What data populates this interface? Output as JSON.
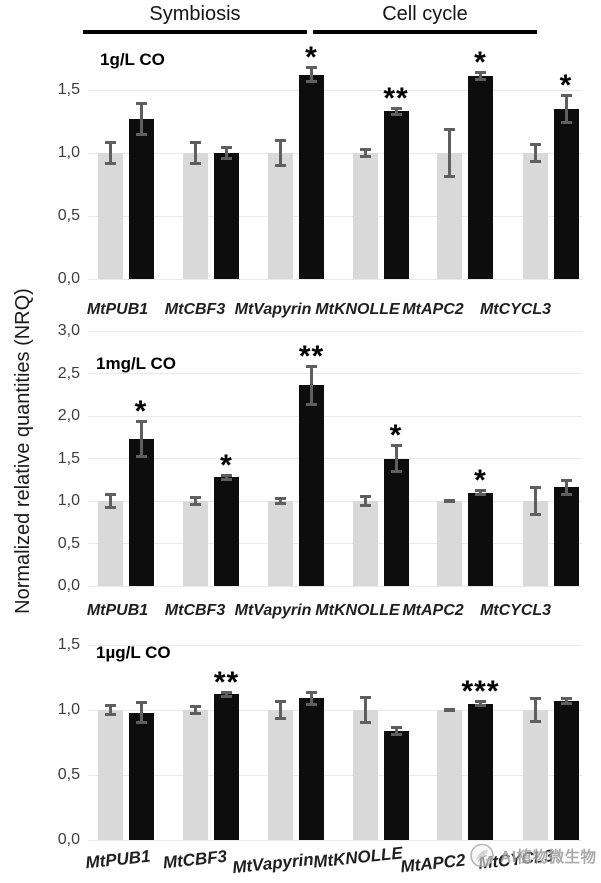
{
  "figure": {
    "y_axis_title": "Normalized relative quantities (NRQ)",
    "group_headers": [
      {
        "label": "Symbiosis"
      },
      {
        "label": "Cell cycle"
      }
    ]
  },
  "colors": {
    "gray_bar": "#d9d9d9",
    "black_bar": "#0d0d0d",
    "error_bar": "#5f5f5f",
    "gridline": "#e9e9e9",
    "tick_text": "#3d3d3d",
    "label_text": "#1f1f1f",
    "watermark_text": "#9c9c9c"
  },
  "watermark": {
    "icon": "plant-microbe-logo",
    "text": "AI植物微生物"
  },
  "chart_data": [
    {
      "type": "bar",
      "title": "1g/L CO",
      "categories": [
        "MtPUB1",
        "MtCBF3",
        "MtVapyrin",
        "MtKNOLLE",
        "MtAPC2",
        "MtCYCL3"
      ],
      "ylim": [
        0,
        1.75
      ],
      "grid": true,
      "legend_position": "none",
      "yticks": [
        {
          "value": 0,
          "label": "0,0"
        },
        {
          "value": 0.5,
          "label": "0,5"
        },
        {
          "value": 1,
          "label": "1,0"
        },
        {
          "value": 1.5,
          "label": "1,5"
        }
      ],
      "series": [
        {
          "name": "gray-bar",
          "values": [
            1,
            1,
            1,
            1,
            1,
            1
          ],
          "errors": [
            0.09,
            0.09,
            0.1,
            0.03,
            0.19,
            0.07
          ]
        },
        {
          "name": "black-bar",
          "values": [
            1.27,
            1.0,
            1.62,
            1.33,
            1.61,
            1.35
          ],
          "errors": [
            0.13,
            0.05,
            0.06,
            0.03,
            0.03,
            0.11
          ]
        }
      ],
      "significance": [
        "",
        "",
        "*",
        "**",
        "*",
        "*"
      ]
    },
    {
      "type": "bar",
      "title": "1mg/L CO",
      "categories": [
        "MtPUB1",
        "MtCBF3",
        "MtVapyrin",
        "MtKNOLLE",
        "MtAPC2",
        "MtCYCL3"
      ],
      "ylim": [
        0,
        3.0
      ],
      "grid": true,
      "legend_position": "none",
      "yticks": [
        {
          "value": 0,
          "label": "0,0"
        },
        {
          "value": 0.5,
          "label": "0,5"
        },
        {
          "value": 1,
          "label": "1,0"
        },
        {
          "value": 1.5,
          "label": "1,5"
        },
        {
          "value": 2,
          "label": "2,0"
        },
        {
          "value": 2.5,
          "label": "2,5"
        },
        {
          "value": 3,
          "label": "3,0"
        }
      ],
      "series": [
        {
          "name": "gray-bar",
          "values": [
            1,
            1,
            1,
            1,
            1,
            1
          ],
          "errors": [
            0.08,
            0.05,
            0.03,
            0.06,
            0.01,
            0.16
          ]
        },
        {
          "name": "black-bar",
          "values": [
            1.73,
            1.28,
            2.36,
            1.5,
            1.1,
            1.16
          ],
          "errors": [
            0.21,
            0.03,
            0.23,
            0.16,
            0.03,
            0.09
          ]
        }
      ],
      "significance": [
        "*",
        "*",
        "**",
        "*",
        "*",
        ""
      ]
    },
    {
      "type": "bar",
      "title": "1µg/L CO",
      "categories": [
        "MtPUB1",
        "MtCBF3",
        "MtVapyrin",
        "MtKNOLLE",
        "MtAPC2",
        "MtCYCL3"
      ],
      "ylim": [
        0,
        1.5
      ],
      "grid": true,
      "legend_position": "none",
      "yticks": [
        {
          "value": 0,
          "label": "0,0"
        },
        {
          "value": 0.5,
          "label": "0,5"
        },
        {
          "value": 1,
          "label": "1,0"
        },
        {
          "value": 1.5,
          "label": "1,5"
        }
      ],
      "series": [
        {
          "name": "gray-bar",
          "values": [
            1,
            1,
            1,
            1,
            1,
            1
          ],
          "errors": [
            0.04,
            0.03,
            0.07,
            0.1,
            0.01,
            0.09
          ]
        },
        {
          "name": "black-bar",
          "values": [
            0.98,
            1.12,
            1.09,
            0.84,
            1.05,
            1.07
          ],
          "errors": [
            0.08,
            0.02,
            0.05,
            0.03,
            0.02,
            0.02
          ]
        }
      ],
      "significance": [
        "",
        "**",
        "",
        "",
        "***",
        ""
      ]
    }
  ]
}
